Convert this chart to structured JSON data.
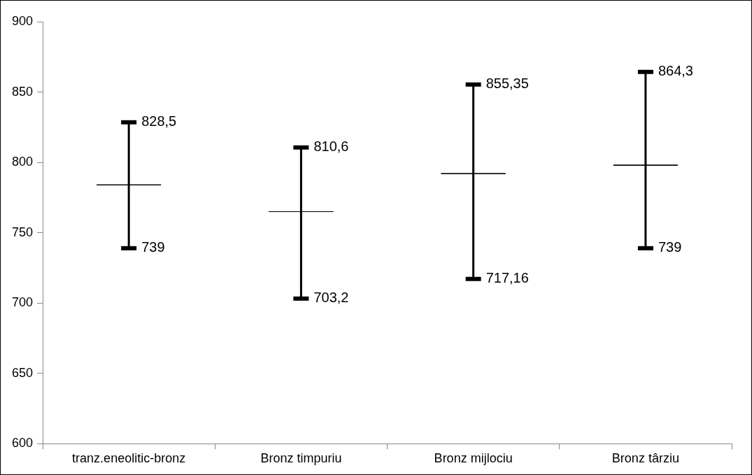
{
  "chart_data": {
    "type": "box",
    "categories": [
      "tranz.eneolitic-bronz",
      "Bronz timpuriu",
      "Bronz mijlociu",
      "Bronz târziu"
    ],
    "boxes": [
      {
        "low": 739,
        "q1": 784,
        "median": 784,
        "q3": 784,
        "high": 828.5
      },
      {
        "low": 703.2,
        "q1": 765,
        "median": 765,
        "q3": 765,
        "high": 810.6
      },
      {
        "low": 717.16,
        "q1": 792,
        "median": 792,
        "q3": 792,
        "high": 855.35
      },
      {
        "low": 739,
        "q1": 798,
        "median": 798,
        "q3": 798,
        "high": 864.3
      }
    ],
    "ylim": [
      600,
      900
    ],
    "yticks": [
      600,
      650,
      700,
      750,
      800,
      850,
      900
    ],
    "grid": false,
    "legend": false,
    "annotations": [
      {
        "text": "828,5",
        "x": "tranz.eneolitic-bronz",
        "y": 828.5
      },
      {
        "text": "739",
        "x": "tranz.eneolitic-bronz",
        "y": 739
      },
      {
        "text": "810,6",
        "x": "Bronz timpuriu",
        "y": 810.6
      },
      {
        "text": "703,2",
        "x": "Bronz timpuriu",
        "y": 703.2
      },
      {
        "text": "855,35",
        "x": "Bronz mijlociu",
        "y": 855.35
      },
      {
        "text": "717,16",
        "x": "Bronz mijlociu",
        "y": 717.16
      },
      {
        "text": "864,3",
        "x": "Bronz târziu",
        "y": 864.3
      },
      {
        "text": "739",
        "x": "Bronz târziu",
        "y": 739
      }
    ]
  }
}
